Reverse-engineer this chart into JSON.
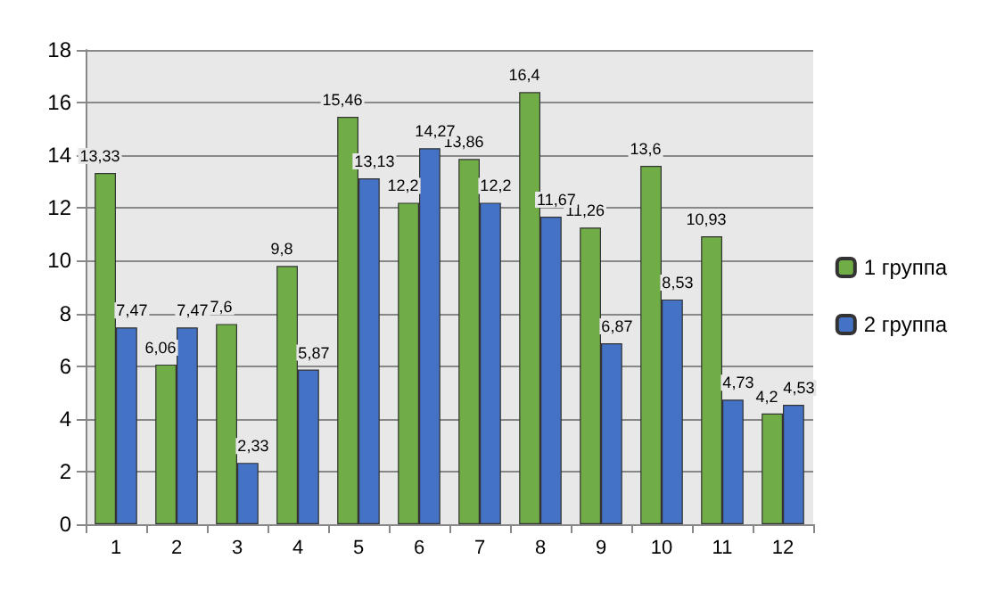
{
  "chart_data": {
    "type": "bar",
    "categories": [
      "1",
      "2",
      "3",
      "4",
      "5",
      "6",
      "7",
      "8",
      "9",
      "10",
      "11",
      "12"
    ],
    "series": [
      {
        "name": "1 группа",
        "color": "#70ad47",
        "values": [
          13.33,
          6.06,
          7.6,
          9.8,
          15.46,
          12.2,
          13.86,
          16.4,
          11.26,
          13.6,
          10.93,
          4.2
        ],
        "value_labels": [
          "13,33",
          "6,06",
          "7,6",
          "9,8",
          "15,46",
          "12,2",
          "13,86",
          "16,4",
          "11,26",
          "13,6",
          "10,93",
          "4,2"
        ]
      },
      {
        "name": "2 группа",
        "color": "#4472c4",
        "values": [
          7.47,
          7.47,
          2.33,
          5.87,
          13.13,
          14.27,
          12.2,
          11.67,
          6.87,
          8.53,
          4.73,
          4.53
        ],
        "value_labels": [
          "7,47",
          "7,47",
          "2,33",
          "5,87",
          "13,13",
          "14,27",
          "12,2",
          "11,67",
          "6,87",
          "8,53",
          "4,73",
          "4,53"
        ]
      }
    ],
    "ylim": [
      0,
      18
    ],
    "yticks": [
      0,
      2,
      4,
      6,
      8,
      10,
      12,
      14,
      16,
      18
    ],
    "grid": "y",
    "legend": "right"
  }
}
